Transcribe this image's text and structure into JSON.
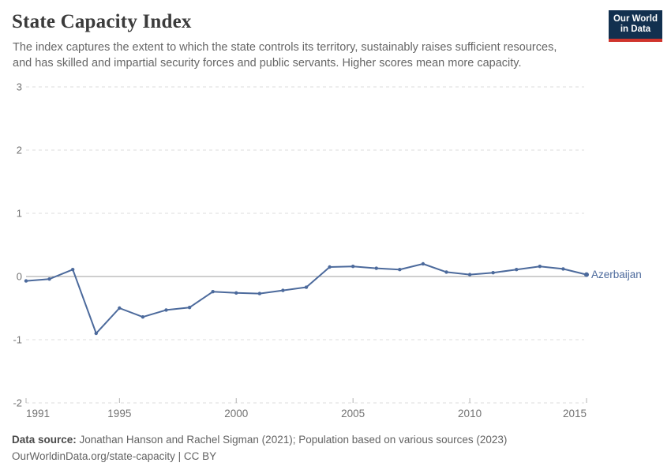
{
  "header": {
    "title": "State Capacity Index",
    "subtitle_lines": [
      "The index captures the extent to which the state controls its territory, sustainably raises sufficient resources,",
      "and has skilled and impartial security forces and public servants. Higher scores mean more capacity."
    ],
    "logo": {
      "line1": "Our World",
      "line2": "in Data",
      "bg_color": "#12304f",
      "accent_color": "#d0342c"
    }
  },
  "chart_data": {
    "type": "line",
    "title": "State Capacity Index",
    "xlabel": "",
    "ylabel": "",
    "xlim": [
      1991,
      2015
    ],
    "ylim": [
      -2,
      3
    ],
    "x_ticks": [
      1991,
      1995,
      2000,
      2005,
      2010,
      2015
    ],
    "y_ticks": [
      3,
      2,
      1,
      0,
      -1,
      -2
    ],
    "grid": "horizontal-dashed",
    "zero_line": true,
    "legend_position": "end-of-line-label",
    "colors": {
      "grid": "#dcdcdc",
      "zero_line": "#9e9e9e",
      "axis_label": "#737373",
      "tick": "#b3b3b3"
    },
    "x": [
      1991,
      1992,
      1993,
      1994,
      1995,
      1996,
      1997,
      1998,
      1999,
      2000,
      2001,
      2002,
      2003,
      2004,
      2005,
      2006,
      2007,
      2008,
      2009,
      2010,
      2011,
      2012,
      2013,
      2014,
      2015
    ],
    "series": [
      {
        "name": "Azerbaijan",
        "color": "#4c6a9c",
        "values": [
          -0.07,
          -0.04,
          0.11,
          -0.9,
          -0.5,
          -0.64,
          -0.53,
          -0.49,
          -0.24,
          -0.26,
          -0.27,
          -0.22,
          -0.17,
          0.15,
          0.16,
          0.13,
          0.11,
          0.2,
          0.07,
          0.03,
          0.06,
          0.11,
          0.16,
          0.12,
          0.03
        ]
      }
    ]
  },
  "footer": {
    "data_source_label": "Data source:",
    "data_source_text": " Jonathan Hanson and Rachel Sigman (2021); Population based on various sources (2023)",
    "link_line": "OurWorldinData.org/state-capacity | CC BY"
  }
}
